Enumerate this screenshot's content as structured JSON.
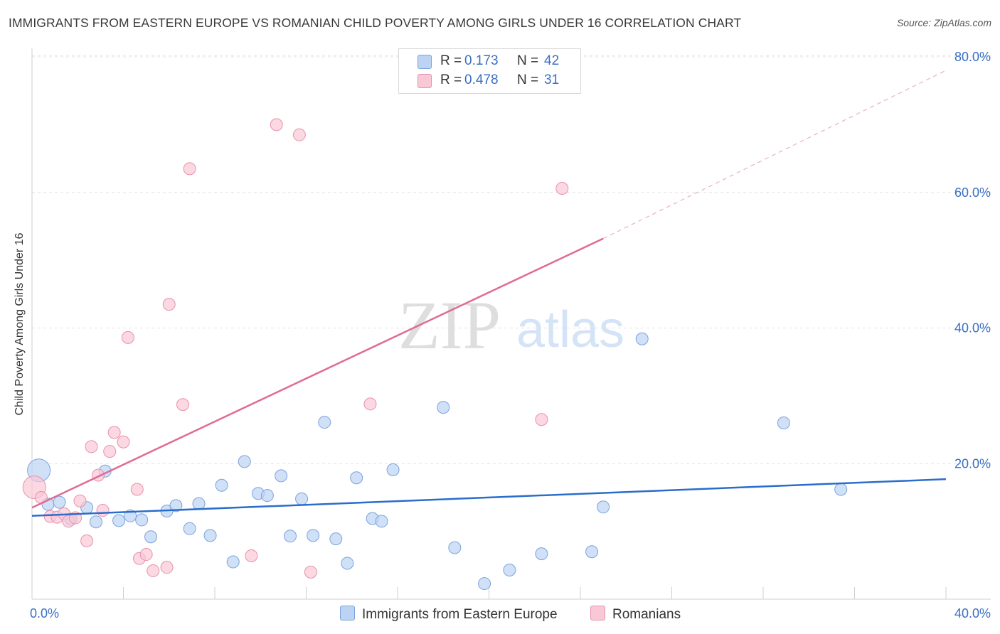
{
  "header": {
    "title": "IMMIGRANTS FROM EASTERN EUROPE VS ROMANIAN CHILD POVERTY AMONG GIRLS UNDER 16 CORRELATION CHART",
    "source": "Source: ZipAtlas.com"
  },
  "watermark": {
    "zip": "ZIP",
    "atlas": "atlas"
  },
  "legend": {
    "r_label": "R =",
    "n_label": "N =",
    "series1": {
      "r": "0.173",
      "n": "42"
    },
    "series2": {
      "r": "0.478",
      "n": "31"
    }
  },
  "colors": {
    "blue_fill": "#bcd3f3",
    "blue_stroke": "#7aa3dd",
    "blue_line": "#2a6dcc",
    "pink_fill": "#f9c8d6",
    "pink_stroke": "#e891ab",
    "pink_line": "#e06a93",
    "tick_label": "#3a6fc4"
  },
  "chart_data": {
    "type": "scatter",
    "title": "IMMIGRANTS FROM EASTERN EUROPE VS ROMANIAN CHILD POVERTY AMONG GIRLS UNDER 16 CORRELATION CHART",
    "xlabel": "",
    "ylabel": "Child Poverty Among Girls Under 16",
    "xlim": [
      0,
      40
    ],
    "ylim": [
      0,
      80
    ],
    "x_tick_labels": [
      "0.0%",
      "40.0%"
    ],
    "y_tick_labels": [
      "20.0%",
      "40.0%",
      "60.0%",
      "80.0%"
    ],
    "y_tick_values": [
      20,
      40,
      60,
      80
    ],
    "grid": true,
    "legend_position": "bottom-center",
    "series": [
      {
        "name": "Immigrants from Eastern Europe",
        "color": "blue",
        "trend": {
          "x": [
            0,
            40
          ],
          "y": [
            12.3,
            17.7
          ],
          "style": "solid"
        },
        "points": [
          {
            "x": 0.3,
            "y": 19.0,
            "big": true
          },
          {
            "x": 0.7,
            "y": 14.0
          },
          {
            "x": 1.2,
            "y": 14.3
          },
          {
            "x": 1.7,
            "y": 11.8
          },
          {
            "x": 2.4,
            "y": 13.5
          },
          {
            "x": 2.8,
            "y": 11.4
          },
          {
            "x": 3.2,
            "y": 18.9
          },
          {
            "x": 3.8,
            "y": 11.6
          },
          {
            "x": 4.3,
            "y": 12.3
          },
          {
            "x": 4.8,
            "y": 11.7
          },
          {
            "x": 5.2,
            "y": 9.2
          },
          {
            "x": 5.9,
            "y": 13.0
          },
          {
            "x": 6.3,
            "y": 13.8
          },
          {
            "x": 6.9,
            "y": 10.4
          },
          {
            "x": 7.3,
            "y": 14.1
          },
          {
            "x": 7.8,
            "y": 9.4
          },
          {
            "x": 8.3,
            "y": 16.8
          },
          {
            "x": 8.8,
            "y": 5.5
          },
          {
            "x": 9.3,
            "y": 20.3
          },
          {
            "x": 9.9,
            "y": 15.6
          },
          {
            "x": 10.3,
            "y": 15.3
          },
          {
            "x": 10.9,
            "y": 18.2
          },
          {
            "x": 11.3,
            "y": 9.3
          },
          {
            "x": 11.8,
            "y": 14.8
          },
          {
            "x": 12.3,
            "y": 9.4
          },
          {
            "x": 12.8,
            "y": 26.1
          },
          {
            "x": 13.3,
            "y": 8.9
          },
          {
            "x": 13.8,
            "y": 5.3
          },
          {
            "x": 14.2,
            "y": 17.9
          },
          {
            "x": 14.9,
            "y": 11.9
          },
          {
            "x": 15.3,
            "y": 11.5
          },
          {
            "x": 15.8,
            "y": 19.1
          },
          {
            "x": 18.0,
            "y": 28.3
          },
          {
            "x": 18.5,
            "y": 7.6
          },
          {
            "x": 19.8,
            "y": 2.3
          },
          {
            "x": 20.9,
            "y": 4.3
          },
          {
            "x": 22.3,
            "y": 6.7
          },
          {
            "x": 24.5,
            "y": 7.0
          },
          {
            "x": 25.0,
            "y": 13.6
          },
          {
            "x": 26.7,
            "y": 38.4
          },
          {
            "x": 32.9,
            "y": 26.0
          },
          {
            "x": 35.4,
            "y": 16.2
          }
        ]
      },
      {
        "name": "Romanians",
        "color": "pink",
        "trend": {
          "x": [
            0,
            25.0
          ],
          "y": [
            13.5,
            53.2
          ],
          "style": "solid",
          "extension": {
            "x": [
              25.0,
              40
            ],
            "y": [
              53.2,
              78.0
            ],
            "style": "dashed"
          }
        },
        "points": [
          {
            "x": 0.1,
            "y": 16.5,
            "big": true
          },
          {
            "x": 0.4,
            "y": 15.0
          },
          {
            "x": 0.8,
            "y": 12.2
          },
          {
            "x": 1.1,
            "y": 12.1
          },
          {
            "x": 1.4,
            "y": 12.6
          },
          {
            "x": 1.6,
            "y": 11.5
          },
          {
            "x": 1.9,
            "y": 12.0
          },
          {
            "x": 2.1,
            "y": 14.5
          },
          {
            "x": 2.4,
            "y": 8.6
          },
          {
            "x": 2.6,
            "y": 22.5
          },
          {
            "x": 2.9,
            "y": 18.3
          },
          {
            "x": 3.1,
            "y": 13.1
          },
          {
            "x": 3.4,
            "y": 21.8
          },
          {
            "x": 3.6,
            "y": 24.6
          },
          {
            "x": 4.0,
            "y": 23.2
          },
          {
            "x": 4.2,
            "y": 38.6
          },
          {
            "x": 4.6,
            "y": 16.2
          },
          {
            "x": 4.7,
            "y": 6.0
          },
          {
            "x": 5.0,
            "y": 6.6
          },
          {
            "x": 5.3,
            "y": 4.2
          },
          {
            "x": 5.9,
            "y": 4.7
          },
          {
            "x": 6.0,
            "y": 43.5
          },
          {
            "x": 6.6,
            "y": 28.7
          },
          {
            "x": 6.9,
            "y": 63.5
          },
          {
            "x": 9.6,
            "y": 6.4
          },
          {
            "x": 10.7,
            "y": 70.0
          },
          {
            "x": 11.7,
            "y": 68.5
          },
          {
            "x": 12.2,
            "y": 4.0
          },
          {
            "x": 14.8,
            "y": 28.8
          },
          {
            "x": 22.3,
            "y": 26.5
          },
          {
            "x": 23.2,
            "y": 60.6
          }
        ]
      }
    ]
  }
}
